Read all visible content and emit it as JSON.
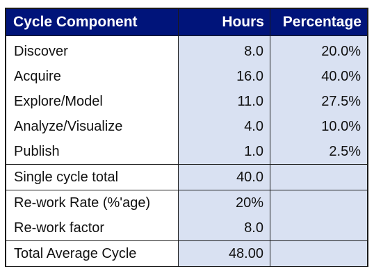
{
  "table": {
    "headers": {
      "component": "Cycle Component",
      "hours": "Hours",
      "percentage": "Percentage"
    },
    "colors": {
      "header_bg": "#00147a",
      "header_text": "#ffffff",
      "value_cell_bg": "#d9e1f2"
    },
    "components": [
      {
        "name": "Discover",
        "hours": "8.0",
        "percentage": "20.0%"
      },
      {
        "name": "Acquire",
        "hours": "16.0",
        "percentage": "40.0%"
      },
      {
        "name": "Explore/Model",
        "hours": "11.0",
        "percentage": "27.5%"
      },
      {
        "name": "Analyze/Visualize",
        "hours": "4.0",
        "percentage": "10.0%"
      },
      {
        "name": "Publish",
        "hours": "1.0",
        "percentage": "2.5%"
      }
    ],
    "single_cycle": {
      "name": "Single cycle total",
      "hours": "40.0",
      "percentage": ""
    },
    "rework": [
      {
        "name": "Re-work Rate (%'age)",
        "hours": "20%",
        "percentage": ""
      },
      {
        "name": "Re-work factor",
        "hours": "8.0",
        "percentage": ""
      }
    ],
    "total": {
      "name": "Total Average Cycle",
      "hours": "48.00",
      "percentage": ""
    }
  }
}
